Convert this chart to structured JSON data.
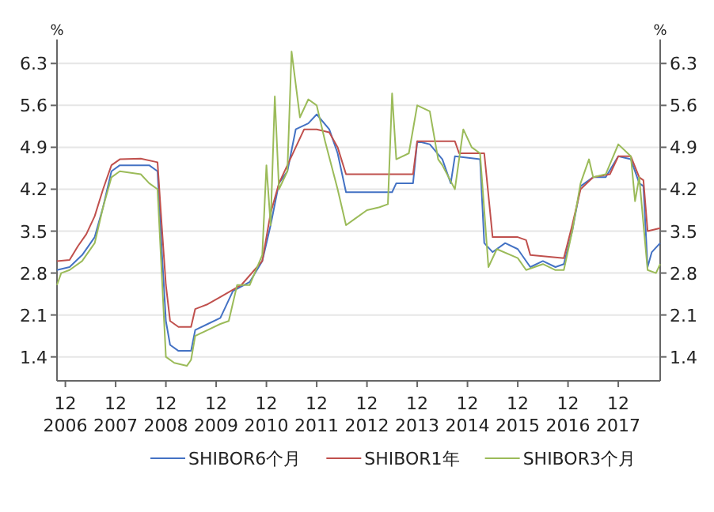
{
  "chart_data": {
    "type": "line",
    "ylabel": "%",
    "y2label": "%",
    "xlim": [
      "2006-10",
      "2018-10"
    ],
    "xticks": [
      {
        "value": "2006-12",
        "label": "12\n2006"
      },
      {
        "value": "2007-12",
        "label": "12\n2007"
      },
      {
        "value": "2008-12",
        "label": "12\n2008"
      },
      {
        "value": "2009-12",
        "label": "12\n2009"
      },
      {
        "value": "2010-12",
        "label": "12\n2010"
      },
      {
        "value": "2011-12",
        "label": "12\n2011"
      },
      {
        "value": "2012-12",
        "label": "12\n2012"
      },
      {
        "value": "2013-12",
        "label": "12\n2013"
      },
      {
        "value": "2014-12",
        "label": "12\n2014"
      },
      {
        "value": "2015-12",
        "label": "12\n2015"
      },
      {
        "value": "2016-12",
        "label": "12\n2016"
      },
      {
        "value": "2017-12",
        "label": "12\n2017"
      }
    ],
    "ylim": [
      1.0,
      6.7
    ],
    "yticks": [
      1.4,
      2.1,
      2.8,
      3.5,
      4.2,
      4.9,
      5.6,
      6.3
    ],
    "y2lim": [
      1.0,
      6.7
    ],
    "y2ticks": [
      1.4,
      2.1,
      2.8,
      3.5,
      4.2,
      4.9,
      5.6,
      6.3
    ],
    "grid": "y",
    "legend": "bottom",
    "series": [
      {
        "name": "SHIBOR6个月",
        "color": "#4472c4",
        "x": [
          "2006-10",
          "2007-01",
          "2007-04",
          "2007-07",
          "2007-09",
          "2007-11",
          "2008-01",
          "2008-08",
          "2008-10",
          "2008-11",
          "2008-12",
          "2009-01",
          "2009-03",
          "2009-06",
          "2009-07",
          "2009-10",
          "2010-01",
          "2010-04",
          "2010-08",
          "2010-11",
          "2011-01",
          "2011-03",
          "2011-05",
          "2011-07",
          "2011-10",
          "2011-12",
          "2012-03",
          "2012-05",
          "2012-07",
          "2013-06",
          "2013-07",
          "2013-11",
          "2013-12",
          "2014-03",
          "2014-06",
          "2014-08",
          "2014-09",
          "2015-03",
          "2015-04",
          "2015-06",
          "2015-09",
          "2015-12",
          "2016-03",
          "2016-06",
          "2016-09",
          "2016-11",
          "2017-01",
          "2017-03",
          "2017-06",
          "2017-09",
          "2017-12",
          "2018-03",
          "2018-05",
          "2018-06",
          "2018-07",
          "2018-08",
          "2018-10"
        ],
        "values": [
          2.85,
          2.9,
          3.1,
          3.4,
          3.9,
          4.5,
          4.6,
          4.6,
          4.5,
          3.2,
          2.0,
          1.6,
          1.5,
          1.5,
          1.85,
          1.95,
          2.05,
          2.5,
          2.65,
          3.0,
          3.6,
          4.3,
          4.5,
          5.2,
          5.3,
          5.45,
          5.2,
          4.8,
          4.15,
          4.15,
          4.3,
          4.3,
          5.0,
          4.95,
          4.7,
          4.3,
          4.75,
          4.7,
          3.3,
          3.15,
          3.3,
          3.2,
          2.9,
          3.0,
          2.9,
          2.95,
          3.5,
          4.25,
          4.4,
          4.4,
          4.75,
          4.7,
          4.3,
          4.25,
          2.9,
          3.15,
          3.3
        ]
      },
      {
        "name": "SHIBOR1年",
        "color": "#c0504d",
        "x": [
          "2006-10",
          "2007-01",
          "2007-03",
          "2007-05",
          "2007-07",
          "2007-09",
          "2007-11",
          "2008-01",
          "2008-06",
          "2008-10",
          "2008-11",
          "2008-12",
          "2009-01",
          "2009-03",
          "2009-06",
          "2009-07",
          "2009-10",
          "2010-01",
          "2010-06",
          "2010-11",
          "2011-01",
          "2011-03",
          "2011-05",
          "2011-07",
          "2011-09",
          "2011-12",
          "2012-03",
          "2012-05",
          "2012-07",
          "2013-11",
          "2013-12",
          "2014-09",
          "2014-10",
          "2015-04",
          "2015-06",
          "2015-12",
          "2016-02",
          "2016-03",
          "2016-11",
          "2017-01",
          "2017-03",
          "2017-06",
          "2017-10",
          "2017-12",
          "2018-03",
          "2018-05",
          "2018-06",
          "2018-07",
          "2018-10"
        ],
        "values": [
          3.0,
          3.02,
          3.25,
          3.45,
          3.75,
          4.2,
          4.6,
          4.7,
          4.71,
          4.65,
          3.6,
          2.6,
          2.0,
          1.9,
          1.9,
          2.2,
          2.28,
          2.4,
          2.6,
          3.0,
          3.8,
          4.3,
          4.6,
          4.9,
          5.2,
          5.2,
          5.15,
          4.9,
          4.45,
          4.45,
          5.0,
          5.0,
          4.8,
          4.8,
          3.4,
          3.4,
          3.35,
          3.1,
          3.05,
          3.6,
          4.2,
          4.4,
          4.45,
          4.75,
          4.75,
          4.4,
          4.35,
          3.5,
          3.55
        ]
      },
      {
        "name": "SHIBOR3个月",
        "color": "#9bbb59",
        "x": [
          "2006-10",
          "2006-11",
          "2007-01",
          "2007-04",
          "2007-07",
          "2007-09",
          "2007-11",
          "2008-01",
          "2008-06",
          "2008-08",
          "2008-10",
          "2008-11",
          "2008-12",
          "2009-02",
          "2009-05",
          "2009-06",
          "2009-07",
          "2009-10",
          "2010-01",
          "2010-03",
          "2010-05",
          "2010-08",
          "2010-11",
          "2010-12",
          "2011-01",
          "2011-02",
          "2011-03",
          "2011-05",
          "2011-06",
          "2011-08",
          "2011-10",
          "2011-12",
          "2012-02",
          "2012-05",
          "2012-07",
          "2012-09",
          "2012-12",
          "2013-03",
          "2013-05",
          "2013-06",
          "2013-07",
          "2013-10",
          "2013-12",
          "2014-03",
          "2014-05",
          "2014-06",
          "2014-09",
          "2014-11",
          "2015-01",
          "2015-03",
          "2015-05",
          "2015-07",
          "2015-12",
          "2016-02",
          "2016-06",
          "2016-09",
          "2016-11",
          "2017-01",
          "2017-03",
          "2017-05",
          "2017-06",
          "2017-09",
          "2017-12",
          "2018-03",
          "2018-04",
          "2018-05",
          "2018-07",
          "2018-09",
          "2018-10"
        ],
        "values": [
          2.6,
          2.8,
          2.85,
          3.0,
          3.3,
          3.9,
          4.4,
          4.5,
          4.45,
          4.3,
          4.2,
          2.8,
          1.4,
          1.3,
          1.25,
          1.35,
          1.75,
          1.85,
          1.95,
          2.0,
          2.6,
          2.6,
          3.1,
          4.6,
          3.6,
          5.75,
          4.2,
          4.5,
          6.5,
          5.4,
          5.7,
          5.6,
          5.0,
          4.2,
          3.6,
          3.7,
          3.85,
          3.9,
          3.95,
          5.8,
          4.7,
          4.8,
          5.6,
          5.5,
          4.7,
          4.6,
          4.2,
          5.2,
          4.9,
          4.8,
          2.9,
          3.2,
          3.05,
          2.85,
          2.95,
          2.85,
          2.85,
          3.5,
          4.3,
          4.7,
          4.4,
          4.45,
          4.95,
          4.75,
          4.0,
          4.4,
          2.85,
          2.8,
          2.95
        ]
      }
    ]
  }
}
